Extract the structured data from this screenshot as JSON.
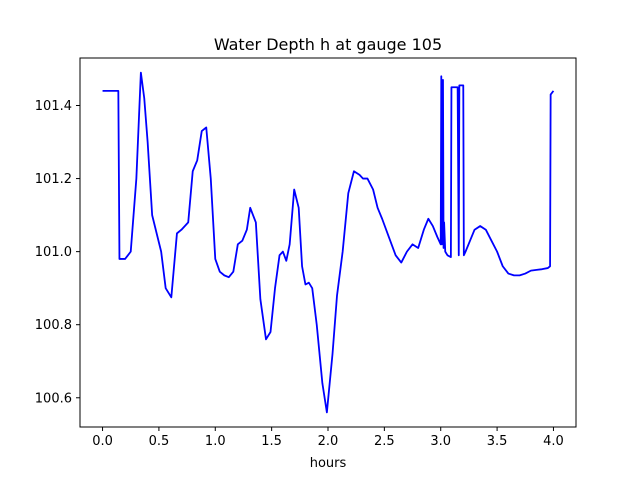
{
  "chart_data": {
    "type": "line",
    "title": "Water Depth h at gauge 105",
    "xlabel": "hours",
    "ylabel": "",
    "xlim": [
      -0.2,
      4.2
    ],
    "ylim": [
      100.52,
      101.53
    ],
    "xticks": [
      0.0,
      0.5,
      1.0,
      1.5,
      2.0,
      2.5,
      3.0,
      3.5,
      4.0
    ],
    "xtick_labels": [
      "0.0",
      "0.5",
      "1.0",
      "1.5",
      "2.0",
      "2.5",
      "3.0",
      "3.5",
      "4.0"
    ],
    "yticks": [
      100.6,
      100.8,
      101.0,
      101.2,
      101.4
    ],
    "ytick_labels": [
      "100.6",
      "100.8",
      "101.0",
      "101.2",
      "101.4"
    ],
    "grid": false,
    "series": [
      {
        "color": "#0000ff",
        "x": [
          0.0,
          0.14,
          0.15,
          0.2,
          0.25,
          0.3,
          0.34,
          0.37,
          0.4,
          0.44,
          0.48,
          0.52,
          0.56,
          0.61,
          0.66,
          0.7,
          0.76,
          0.8,
          0.84,
          0.88,
          0.92,
          0.96,
          1.0,
          1.04,
          1.08,
          1.12,
          1.16,
          1.2,
          1.24,
          1.28,
          1.31,
          1.36,
          1.4,
          1.45,
          1.49,
          1.53,
          1.57,
          1.6,
          1.63,
          1.66,
          1.7,
          1.74,
          1.77,
          1.8,
          1.83,
          1.86,
          1.9,
          1.95,
          1.99,
          2.04,
          2.08,
          2.13,
          2.18,
          2.23,
          2.28,
          2.31,
          2.35,
          2.4,
          2.44,
          2.48,
          2.54,
          2.6,
          2.65,
          2.7,
          2.75,
          2.8,
          2.85,
          2.89,
          2.93,
          2.97,
          3.0,
          3.005,
          3.01,
          3.02,
          3.025,
          3.03,
          3.04,
          3.06,
          3.09,
          3.095,
          3.15,
          3.16,
          3.165,
          3.2,
          3.205,
          3.22,
          3.26,
          3.3,
          3.35,
          3.4,
          3.45,
          3.5,
          3.55,
          3.6,
          3.65,
          3.7,
          3.75,
          3.8,
          3.85,
          3.9,
          3.95,
          3.97,
          3.975,
          4.0
        ],
        "y": [
          101.44,
          101.44,
          100.98,
          100.98,
          101.0,
          101.2,
          101.49,
          101.42,
          101.3,
          101.1,
          101.05,
          101.0,
          100.9,
          100.875,
          101.05,
          101.06,
          101.08,
          101.22,
          101.25,
          101.33,
          101.34,
          101.2,
          100.98,
          100.945,
          100.935,
          100.93,
          100.945,
          101.02,
          101.03,
          101.06,
          101.12,
          101.08,
          100.87,
          100.76,
          100.78,
          100.9,
          100.99,
          101.0,
          100.975,
          101.02,
          101.17,
          101.12,
          100.96,
          100.91,
          100.915,
          100.9,
          100.8,
          100.64,
          100.56,
          100.72,
          100.88,
          101.0,
          101.16,
          101.22,
          101.21,
          101.2,
          101.2,
          101.17,
          101.12,
          101.09,
          101.04,
          100.99,
          100.97,
          101.0,
          101.02,
          101.01,
          101.06,
          101.09,
          101.07,
          101.04,
          101.02,
          101.48,
          101.02,
          101.47,
          101.01,
          101.08,
          101.0,
          100.99,
          100.985,
          101.45,
          101.45,
          100.99,
          101.455,
          101.455,
          100.99,
          101.0,
          101.03,
          101.06,
          101.07,
          101.06,
          101.03,
          101.0,
          100.96,
          100.94,
          100.935,
          100.935,
          100.94,
          100.948,
          100.95,
          100.952,
          100.955,
          100.96,
          101.43,
          101.44
        ]
      }
    ]
  }
}
